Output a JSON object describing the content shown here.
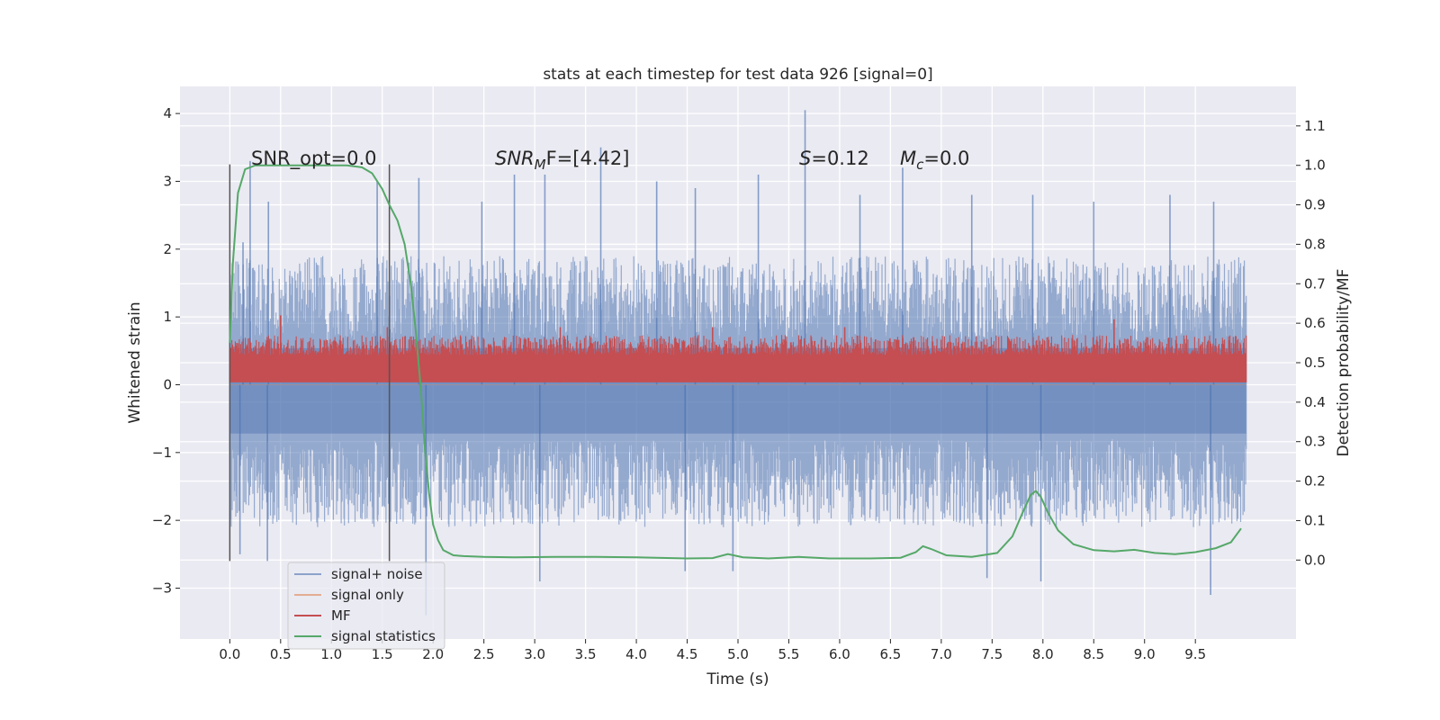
{
  "chart_data": {
    "type": "line",
    "title": "stats at each timestep for test data 926 [signal=0]",
    "xlabel": "Time (s)",
    "ylabel": "Whitened strain",
    "ylabel_right": "Detection probability/MF",
    "xlim": [
      -0.49,
      10.49
    ],
    "ylim": [
      -3.75,
      4.4
    ],
    "ylim_right": [
      -0.2,
      1.2
    ],
    "x_ticks": [
      "0.0",
      "0.5",
      "1.0",
      "1.5",
      "2.0",
      "2.5",
      "3.0",
      "3.5",
      "4.0",
      "4.5",
      "5.0",
      "5.5",
      "6.0",
      "6.5",
      "7.0",
      "7.5",
      "8.0",
      "8.5",
      "9.0",
      "9.5"
    ],
    "y_ticks": [
      "−3",
      "−2",
      "−1",
      "0",
      "1",
      "2",
      "3",
      "4"
    ],
    "y_right_ticks": [
      "0.0",
      "0.1",
      "0.2",
      "0.3",
      "0.4",
      "0.5",
      "0.6",
      "0.7",
      "0.8",
      "0.9",
      "1.0",
      "1.1"
    ],
    "grid": true,
    "legend_position": "lower-left",
    "annotations": {
      "snr_opt": "SNR_opt=0.0",
      "snr_mf_name": "SNR",
      "snr_mf_sub": "M",
      "snr_mf_tail": "F=[4.42]",
      "s_name": "S",
      "s_value": "=0.12",
      "mc_name": "M",
      "mc_sub": "c",
      "mc_value": "=0.0"
    },
    "vlines_x": [
      0.0,
      1.57
    ],
    "vlines_y_range": [
      -2.6,
      3.25
    ],
    "series": [
      {
        "name": "signal+ noise",
        "color": "#4c72b0",
        "opacity": 0.55,
        "axis": "left",
        "style": "noise",
        "x_range": [
          0.0,
          10.0
        ],
        "upper_typical": [
          0.6,
          1.9
        ],
        "lower_typical": [
          -0.8,
          -2.1
        ],
        "spikes": [
          {
            "x": 0.13,
            "y": 2.1
          },
          {
            "x": 0.2,
            "y": 3.3
          },
          {
            "x": 0.38,
            "y": 2.7
          },
          {
            "x": 1.45,
            "y": 3.0
          },
          {
            "x": 1.86,
            "y": 3.05
          },
          {
            "x": 2.48,
            "y": 2.7
          },
          {
            "x": 2.8,
            "y": 3.1
          },
          {
            "x": 3.1,
            "y": 3.1
          },
          {
            "x": 3.65,
            "y": 3.5
          },
          {
            "x": 4.2,
            "y": 3.0
          },
          {
            "x": 4.58,
            "y": 2.9
          },
          {
            "x": 5.2,
            "y": 3.1
          },
          {
            "x": 5.66,
            "y": 4.05
          },
          {
            "x": 6.2,
            "y": 2.8
          },
          {
            "x": 6.62,
            "y": 3.2
          },
          {
            "x": 7.3,
            "y": 2.8
          },
          {
            "x": 7.9,
            "y": 2.8
          },
          {
            "x": 8.5,
            "y": 2.7
          },
          {
            "x": 9.25,
            "y": 2.8
          },
          {
            "x": 9.68,
            "y": 2.7
          },
          {
            "x": 0.1,
            "y": -2.5
          },
          {
            "x": 0.37,
            "y": -2.6
          },
          {
            "x": 1.93,
            "y": -3.4
          },
          {
            "x": 3.05,
            "y": -2.9
          },
          {
            "x": 4.48,
            "y": -2.75
          },
          {
            "x": 4.95,
            "y": -2.75
          },
          {
            "x": 7.45,
            "y": -2.85
          },
          {
            "x": 7.98,
            "y": -2.9
          },
          {
            "x": 9.65,
            "y": -3.1
          }
        ]
      },
      {
        "name": "signal only",
        "color": "#dd8452",
        "axis": "left",
        "style": "flat",
        "value": 0.0
      },
      {
        "name": "MF",
        "color": "#c44e52",
        "axis": "right",
        "style": "band",
        "x_range": [
          0.0,
          10.0
        ],
        "lower": 0.45,
        "upper_typical": [
          0.52,
          0.57
        ],
        "spikes": [
          {
            "x": 0.5,
            "y": 0.62
          },
          {
            "x": 1.55,
            "y": 0.59
          },
          {
            "x": 3.25,
            "y": 0.59
          },
          {
            "x": 4.75,
            "y": 0.59
          },
          {
            "x": 6.05,
            "y": 0.59
          },
          {
            "x": 8.7,
            "y": 0.61
          }
        ]
      },
      {
        "name": "signal statistics",
        "color": "#55a868",
        "axis": "right",
        "style": "line",
        "x": [
          0.0,
          0.03,
          0.08,
          0.15,
          0.25,
          0.4,
          0.6,
          0.8,
          1.0,
          1.15,
          1.3,
          1.4,
          1.5,
          1.57,
          1.65,
          1.72,
          1.78,
          1.83,
          1.88,
          1.92,
          1.96,
          2.0,
          2.05,
          2.1,
          2.2,
          2.3,
          2.5,
          2.8,
          3.2,
          3.6,
          4.0,
          4.5,
          4.75,
          4.9,
          5.05,
          5.3,
          5.6,
          5.9,
          6.3,
          6.6,
          6.75,
          6.82,
          6.9,
          7.05,
          7.3,
          7.55,
          7.7,
          7.8,
          7.88,
          7.93,
          7.98,
          8.05,
          8.15,
          8.3,
          8.5,
          8.7,
          8.9,
          9.1,
          9.3,
          9.5,
          9.7,
          9.85,
          9.95
        ],
        "y": [
          0.55,
          0.75,
          0.93,
          0.99,
          1.0,
          1.0,
          1.0,
          1.0,
          1.0,
          1.0,
          0.995,
          0.98,
          0.94,
          0.9,
          0.86,
          0.8,
          0.7,
          0.58,
          0.43,
          0.28,
          0.17,
          0.09,
          0.05,
          0.025,
          0.012,
          0.01,
          0.008,
          0.007,
          0.008,
          0.008,
          0.007,
          0.004,
          0.005,
          0.015,
          0.007,
          0.004,
          0.008,
          0.004,
          0.004,
          0.006,
          0.02,
          0.035,
          0.028,
          0.012,
          0.008,
          0.018,
          0.06,
          0.12,
          0.165,
          0.175,
          0.16,
          0.12,
          0.075,
          0.04,
          0.025,
          0.022,
          0.026,
          0.018,
          0.015,
          0.02,
          0.03,
          0.045,
          0.08
        ]
      }
    ]
  }
}
